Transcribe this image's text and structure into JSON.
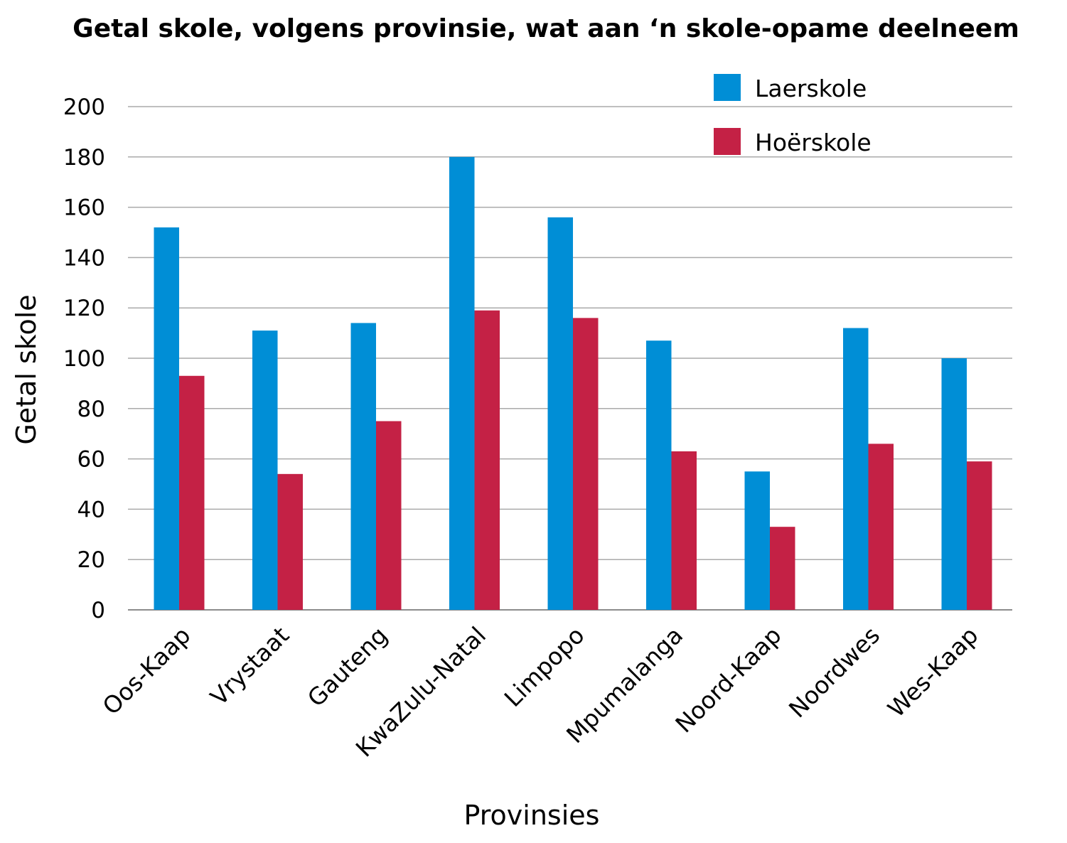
{
  "chart_data": {
    "type": "bar",
    "title": "Getal skole, volgens provinsie, wat aan ‘n skole-opame deelneem",
    "xlabel": "Provinsies",
    "ylabel": "Getal skole",
    "ylim": [
      0,
      200
    ],
    "yticks": [
      0,
      20,
      40,
      60,
      80,
      100,
      120,
      140,
      160,
      180,
      200
    ],
    "grid": true,
    "legend_position": "top-right",
    "categories": [
      "Oos-Kaap",
      "Vrystaat",
      "Gauteng",
      "KwaZulu-Natal",
      "Limpopo",
      "Mpumalanga",
      "Noord-Kaap",
      "Noordwes",
      "Wes-Kaap"
    ],
    "series": [
      {
        "name": "Laerskole",
        "color": "#008ed6",
        "values": [
          152,
          111,
          114,
          180,
          156,
          107,
          55,
          112,
          100
        ]
      },
      {
        "name": "Hoërskole",
        "color": "#c42145",
        "values": [
          93,
          54,
          75,
          119,
          116,
          63,
          33,
          66,
          59
        ]
      }
    ]
  }
}
